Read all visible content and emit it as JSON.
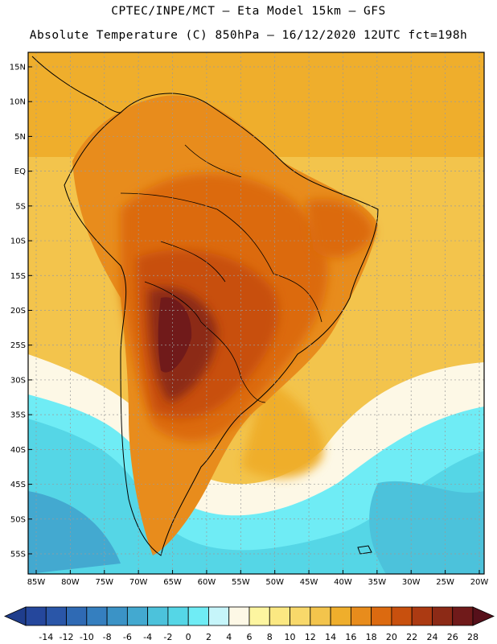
{
  "title": {
    "line1": "CPTEC/INPE/MCT –  Eta Model 15km – GFS",
    "line2": "Absolute Temperature (C) 850hPa – 16/12/2020 12UTC fct=198h"
  },
  "map": {
    "lat_labels": [
      "15N",
      "10N",
      "5N",
      "EQ",
      "5S",
      "10S",
      "15S",
      "20S",
      "25S",
      "30S",
      "35S",
      "40S",
      "45S",
      "50S",
      "55S"
    ],
    "lon_labels": [
      "85W",
      "80W",
      "75W",
      "70W",
      "65W",
      "60W",
      "55W",
      "50W",
      "45W",
      "40W",
      "35W",
      "30W",
      "25W",
      "20W"
    ],
    "lon_range": [
      -85,
      -20
    ],
    "lat_range": [
      -58,
      16
    ]
  },
  "colorbar": {
    "labels": [
      "-14",
      "-12",
      "-10",
      "-8",
      "-6",
      "-4",
      "-2",
      "0",
      "2",
      "4",
      "6",
      "8",
      "10",
      "12",
      "14",
      "16",
      "18",
      "20",
      "22",
      "24",
      "26",
      "28"
    ],
    "colors": [
      "#1f3d8c",
      "#25479c",
      "#2a56a8",
      "#2f6ab4",
      "#357fbf",
      "#3b93c6",
      "#43a9d0",
      "#4cc2db",
      "#55d6e6",
      "#6fecf5",
      "#c6f5fa",
      "#fdf8e6",
      "#fdf5a0",
      "#fbe882",
      "#f8d86a",
      "#f3c44c",
      "#efae2c",
      "#e88c1c",
      "#dc6a10",
      "#c8500e",
      "#ac3a12",
      "#8c2a16",
      "#701a1a",
      "#56101a"
    ]
  }
}
